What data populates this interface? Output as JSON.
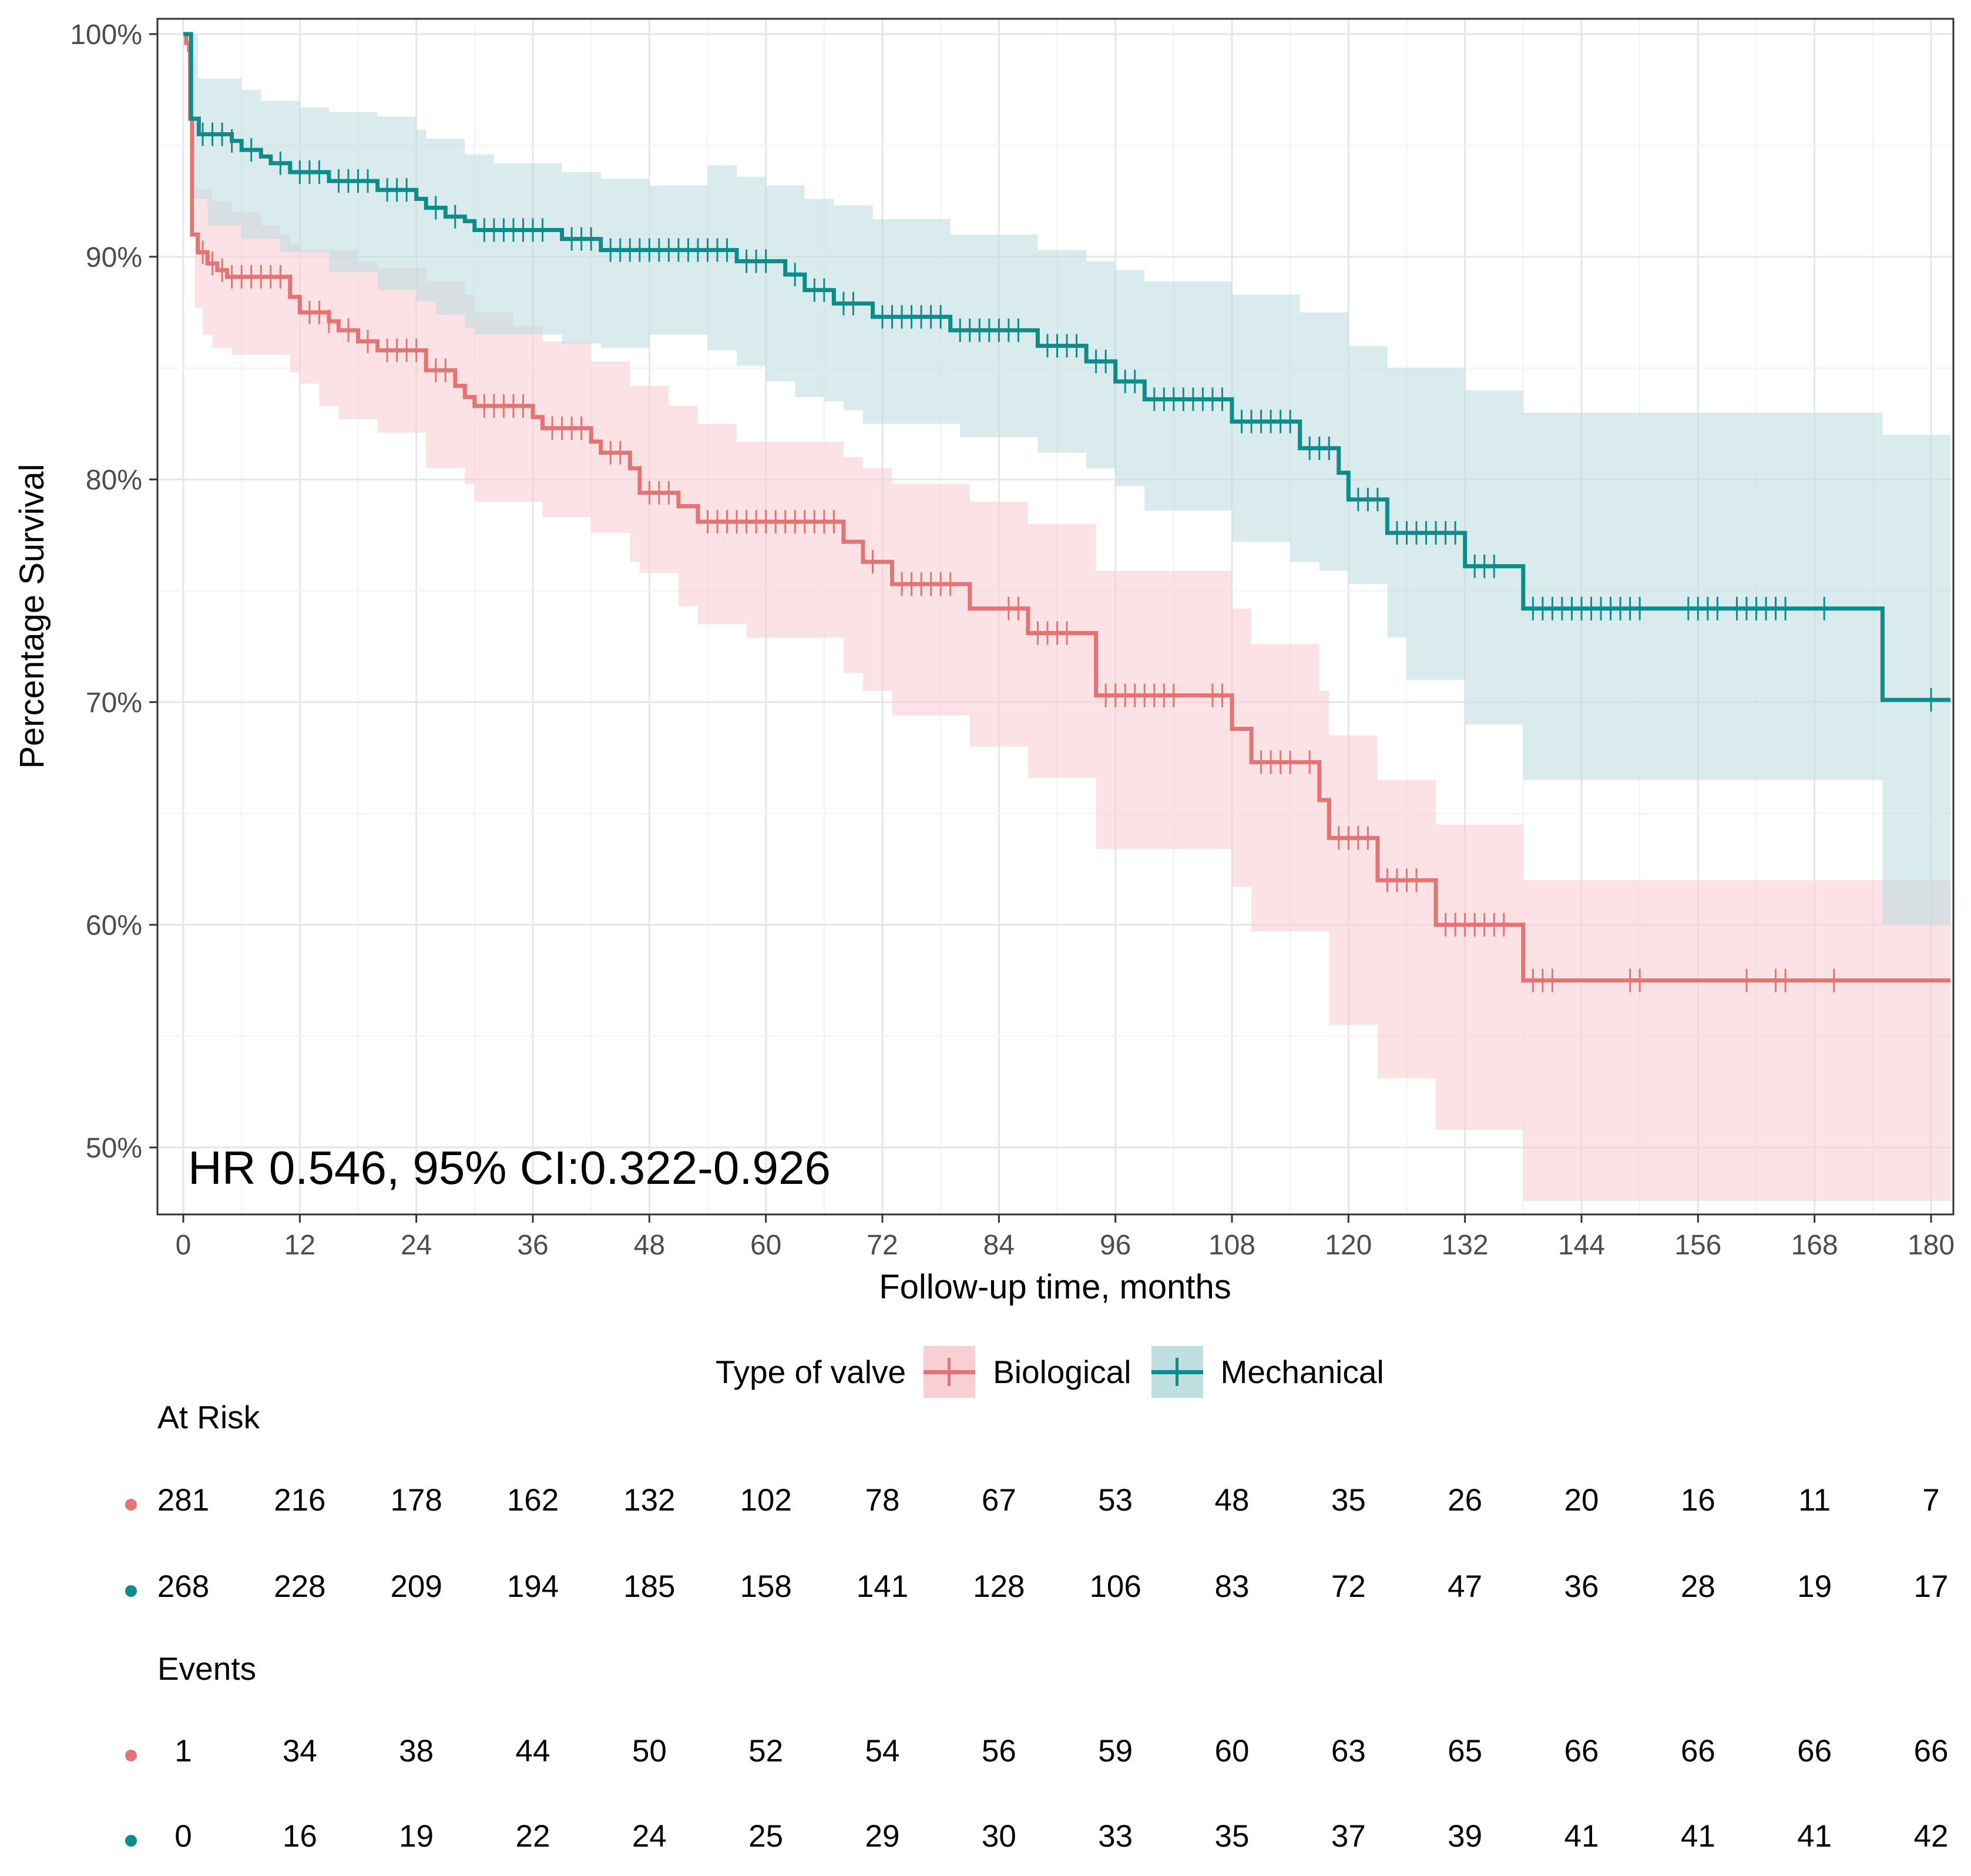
{
  "chart_data": {
    "type": "line",
    "subtype": "kaplan-meier survival curve with confidence bands",
    "ylabel": "Percentage Survival",
    "xlabel": "Follow-up time, months",
    "xlim": [
      0,
      182
    ],
    "ylim": [
      47,
      100.7
    ],
    "x_ticks": [
      0,
      12,
      24,
      36,
      48,
      60,
      72,
      84,
      96,
      108,
      120,
      132,
      144,
      156,
      168,
      180
    ],
    "x_tick_labels": [
      "0",
      "12",
      "24",
      "36",
      "48",
      "60",
      "72",
      "84",
      "96",
      "108",
      "120",
      "132",
      "144",
      "156",
      "168",
      "180"
    ],
    "y_ticks": [
      50,
      60,
      70,
      80,
      90,
      100
    ],
    "y_tick_labels": [
      "50%",
      "60%",
      "70%",
      "80%",
      "90%",
      "100%"
    ],
    "grid": true,
    "annotation": "HR 0.546, 95% CI:0.322-0.926",
    "legend": {
      "title": "Type of valve",
      "position": "bottom",
      "entries": [
        "Biological",
        "Mechanical"
      ]
    },
    "series": [
      {
        "name": "Biological",
        "color": "#E57373",
        "band_color": "#F8CFD2",
        "steps": [
          [
            0,
            100
          ],
          [
            0.3,
            99.6
          ],
          [
            0.6,
            99.3
          ],
          [
            0.7,
            96.2
          ],
          [
            0.9,
            91
          ],
          [
            1.5,
            90.2
          ],
          [
            2.5,
            89.7
          ],
          [
            3.5,
            89.4
          ],
          [
            4.5,
            89.1
          ],
          [
            11,
            88.2
          ],
          [
            12,
            87.5
          ],
          [
            15,
            87.1
          ],
          [
            16,
            86.7
          ],
          [
            18,
            86.2
          ],
          [
            20,
            85.8
          ],
          [
            25,
            84.9
          ],
          [
            28,
            84.2
          ],
          [
            29,
            83.7
          ],
          [
            30,
            83.3
          ],
          [
            36,
            82.8
          ],
          [
            37,
            82.3
          ],
          [
            42,
            81.7
          ],
          [
            43,
            81.2
          ],
          [
            46,
            80.5
          ],
          [
            47,
            79.4
          ],
          [
            51,
            78.8
          ],
          [
            53,
            78.1
          ],
          [
            68,
            77.2
          ],
          [
            70,
            76.3
          ],
          [
            73,
            75.3
          ],
          [
            81,
            74.2
          ],
          [
            87,
            73.1
          ],
          [
            94,
            70.3
          ],
          [
            108,
            68.8
          ],
          [
            110,
            67.3
          ],
          [
            117,
            65.6
          ],
          [
            118,
            63.9
          ],
          [
            123,
            62
          ],
          [
            129,
            60
          ],
          [
            138,
            57.5
          ],
          [
            182,
            57.5
          ]
        ],
        "ci_upper": [
          [
            0,
            100
          ],
          [
            0.7,
            99
          ],
          [
            1.2,
            93
          ],
          [
            3,
            92.5
          ],
          [
            5,
            92
          ],
          [
            8,
            91.4
          ],
          [
            10,
            91
          ],
          [
            11,
            90.6
          ],
          [
            12,
            90.3
          ],
          [
            18,
            89.8
          ],
          [
            20,
            89.5
          ],
          [
            25,
            88.9
          ],
          [
            29,
            88.3
          ],
          [
            30,
            87.5
          ],
          [
            34,
            86.9
          ],
          [
            37,
            86.2
          ],
          [
            42,
            85.3
          ],
          [
            46,
            84.2
          ],
          [
            50,
            83.3
          ],
          [
            53,
            82.5
          ],
          [
            57,
            81.7
          ],
          [
            68,
            81
          ],
          [
            70,
            80.5
          ],
          [
            73,
            79.8
          ],
          [
            81,
            79
          ],
          [
            87,
            78
          ],
          [
            94,
            75.9
          ],
          [
            108,
            74.2
          ],
          [
            110,
            72.6
          ],
          [
            117,
            70.5
          ],
          [
            118,
            68.5
          ],
          [
            123,
            66.5
          ],
          [
            129,
            64.5
          ],
          [
            138,
            62
          ],
          [
            182,
            62
          ]
        ],
        "ci_lower": [
          [
            0,
            100
          ],
          [
            0.7,
            93
          ],
          [
            1.2,
            87.7
          ],
          [
            2,
            86.5
          ],
          [
            3,
            85.9
          ],
          [
            5,
            85.6
          ],
          [
            11,
            84.8
          ],
          [
            12,
            84.3
          ],
          [
            14,
            83.3
          ],
          [
            16,
            82.7
          ],
          [
            20,
            82.1
          ],
          [
            25,
            80.5
          ],
          [
            29,
            79.8
          ],
          [
            30,
            79
          ],
          [
            37,
            78.3
          ],
          [
            42,
            77.6
          ],
          [
            46,
            76.3
          ],
          [
            47,
            75.8
          ],
          [
            51,
            74.3
          ],
          [
            53,
            73.5
          ],
          [
            58,
            72.9
          ],
          [
            68,
            71.3
          ],
          [
            70,
            70.5
          ],
          [
            73,
            69.4
          ],
          [
            81,
            68
          ],
          [
            87,
            66.6
          ],
          [
            94,
            63.4
          ],
          [
            108,
            61.7
          ],
          [
            110,
            59.7
          ],
          [
            118,
            55.5
          ],
          [
            123,
            53.1
          ],
          [
            129,
            50.8
          ],
          [
            138,
            47.6
          ],
          [
            182,
            47.6
          ]
        ]
      },
      {
        "name": "Mechanical",
        "color": "#0E8B8B",
        "band_color": "#BFDEDF",
        "steps": [
          [
            0,
            100
          ],
          [
            0.8,
            96.2
          ],
          [
            1.6,
            95.5
          ],
          [
            5,
            95.2
          ],
          [
            6,
            94.8
          ],
          [
            8,
            94.5
          ],
          [
            9,
            94.2
          ],
          [
            11,
            93.8
          ],
          [
            15,
            93.4
          ],
          [
            20,
            93
          ],
          [
            24,
            92.6
          ],
          [
            25,
            92.2
          ],
          [
            27,
            91.8
          ],
          [
            29,
            91.6
          ],
          [
            30,
            91.2
          ],
          [
            39,
            90.8
          ],
          [
            43,
            90.3
          ],
          [
            57,
            89.8
          ],
          [
            62,
            89.2
          ],
          [
            64,
            88.5
          ],
          [
            67,
            87.9
          ],
          [
            71,
            87.3
          ],
          [
            79,
            86.7
          ],
          [
            88,
            86
          ],
          [
            93,
            85.3
          ],
          [
            96,
            84.4
          ],
          [
            99,
            83.6
          ],
          [
            108,
            82.6
          ],
          [
            115,
            81.4
          ],
          [
            119,
            80.3
          ],
          [
            120,
            79.1
          ],
          [
            124,
            77.6
          ],
          [
            132,
            76.1
          ],
          [
            138,
            74.2
          ],
          [
            175,
            70.1
          ],
          [
            182,
            70.1
          ]
        ],
        "ci_upper": [
          [
            0,
            100
          ],
          [
            1.5,
            98
          ],
          [
            6,
            97.5
          ],
          [
            8,
            97
          ],
          [
            12,
            96.7
          ],
          [
            15,
            96.5
          ],
          [
            20,
            96.3
          ],
          [
            24,
            95.7
          ],
          [
            25,
            95.3
          ],
          [
            29,
            94.6
          ],
          [
            32,
            94.2
          ],
          [
            39,
            93.8
          ],
          [
            43,
            93.5
          ],
          [
            48,
            93.2
          ],
          [
            54,
            94.1
          ],
          [
            57,
            93.6
          ],
          [
            60,
            93.2
          ],
          [
            64,
            92.6
          ],
          [
            67,
            92.3
          ],
          [
            71,
            91.7
          ],
          [
            79,
            91
          ],
          [
            88,
            90.3
          ],
          [
            93,
            89.8
          ],
          [
            96,
            89.4
          ],
          [
            99,
            88.9
          ],
          [
            108,
            88.3
          ],
          [
            115,
            87.5
          ],
          [
            120,
            86
          ],
          [
            124,
            85
          ],
          [
            132,
            84
          ],
          [
            138,
            83
          ],
          [
            175,
            82
          ],
          [
            182,
            82
          ]
        ],
        "ci_lower": [
          [
            0,
            100
          ],
          [
            0.8,
            92.6
          ],
          [
            2.5,
            91.4
          ],
          [
            6,
            90.8
          ],
          [
            10,
            90.2
          ],
          [
            15,
            89.3
          ],
          [
            20,
            88.5
          ],
          [
            24,
            88
          ],
          [
            26,
            87.4
          ],
          [
            29,
            86.8
          ],
          [
            30,
            86.5
          ],
          [
            39,
            86.1
          ],
          [
            43,
            85.9
          ],
          [
            48,
            86.5
          ],
          [
            54,
            85.8
          ],
          [
            57,
            85.1
          ],
          [
            60,
            84.4
          ],
          [
            63,
            83.7
          ],
          [
            66,
            83.5
          ],
          [
            68,
            83.1
          ],
          [
            70,
            82.5
          ],
          [
            80,
            81.9
          ],
          [
            88,
            81.2
          ],
          [
            93,
            80.5
          ],
          [
            96,
            79.7
          ],
          [
            99,
            78.6
          ],
          [
            108,
            77.2
          ],
          [
            114,
            76.3
          ],
          [
            117,
            75.9
          ],
          [
            120,
            75.3
          ],
          [
            124,
            72.9
          ],
          [
            126,
            71
          ],
          [
            132,
            69
          ],
          [
            138,
            66.5
          ],
          [
            175,
            60
          ],
          [
            182,
            60
          ]
        ]
      }
    ],
    "censor_marks": {
      "Biological": [
        2,
        3,
        4,
        5,
        6,
        7,
        8,
        9,
        10,
        13,
        14,
        15,
        17,
        19,
        21,
        22,
        23,
        24,
        26,
        27,
        31,
        32,
        33,
        34,
        35,
        38,
        39,
        40,
        41,
        44,
        45,
        48,
        49,
        50,
        54,
        55,
        56,
        57,
        58,
        59,
        60,
        61,
        62,
        63,
        64,
        65,
        66,
        67,
        71,
        74,
        75,
        76,
        77,
        78,
        79,
        85,
        86,
        88,
        89,
        90,
        91,
        95,
        96,
        97,
        98,
        99,
        100,
        101,
        102,
        106,
        107,
        111,
        112,
        113,
        114,
        116,
        119,
        120,
        121,
        122,
        124,
        125,
        126,
        127,
        130,
        131,
        132,
        133,
        134,
        135,
        136,
        139,
        140,
        141,
        149,
        150,
        161,
        164,
        165,
        170
      ],
      "Mechanical": [
        2,
        3,
        4,
        5,
        7,
        10,
        12,
        13,
        14,
        16,
        17,
        18,
        19,
        21,
        22,
        23,
        26,
        28,
        31,
        32,
        33,
        34,
        35,
        36,
        37,
        40,
        41,
        42,
        44,
        45,
        46,
        47,
        48,
        49,
        50,
        51,
        52,
        53,
        54,
        55,
        56,
        58,
        59,
        60,
        63,
        65,
        66,
        68,
        69,
        72,
        73,
        74,
        75,
        76,
        77,
        78,
        80,
        81,
        82,
        83,
        84,
        85,
        86,
        89,
        90,
        91,
        92,
        94,
        95,
        97,
        98,
        100,
        101,
        102,
        103,
        104,
        105,
        106,
        107,
        109,
        110,
        111,
        112,
        113,
        114,
        116,
        117,
        118,
        121,
        122,
        123,
        125,
        126,
        127,
        128,
        129,
        130,
        131,
        133,
        134,
        135,
        139,
        140,
        141,
        142,
        143,
        144,
        145,
        146,
        147,
        148,
        149,
        150,
        155,
        156,
        157,
        158,
        160,
        161,
        162,
        163,
        164,
        165,
        169,
        180
      ]
    }
  },
  "risk_table": {
    "at_risk_title": "At Risk",
    "events_title": "Events",
    "at_risk": {
      "Biological": [
        "281",
        "216",
        "178",
        "162",
        "132",
        "102",
        "78",
        "67",
        "53",
        "48",
        "35",
        "26",
        "20",
        "16",
        "11",
        "7"
      ],
      "Mechanical": [
        "268",
        "228",
        "209",
        "194",
        "185",
        "158",
        "141",
        "128",
        "106",
        "83",
        "72",
        "47",
        "36",
        "28",
        "19",
        "17"
      ]
    },
    "events": {
      "Biological": [
        "1",
        "34",
        "38",
        "44",
        "50",
        "52",
        "54",
        "56",
        "59",
        "60",
        "63",
        "65",
        "66",
        "66",
        "66",
        "66"
      ],
      "Mechanical": [
        "0",
        "16",
        "19",
        "22",
        "24",
        "25",
        "29",
        "30",
        "33",
        "35",
        "37",
        "39",
        "41",
        "41",
        "41",
        "42"
      ]
    }
  }
}
